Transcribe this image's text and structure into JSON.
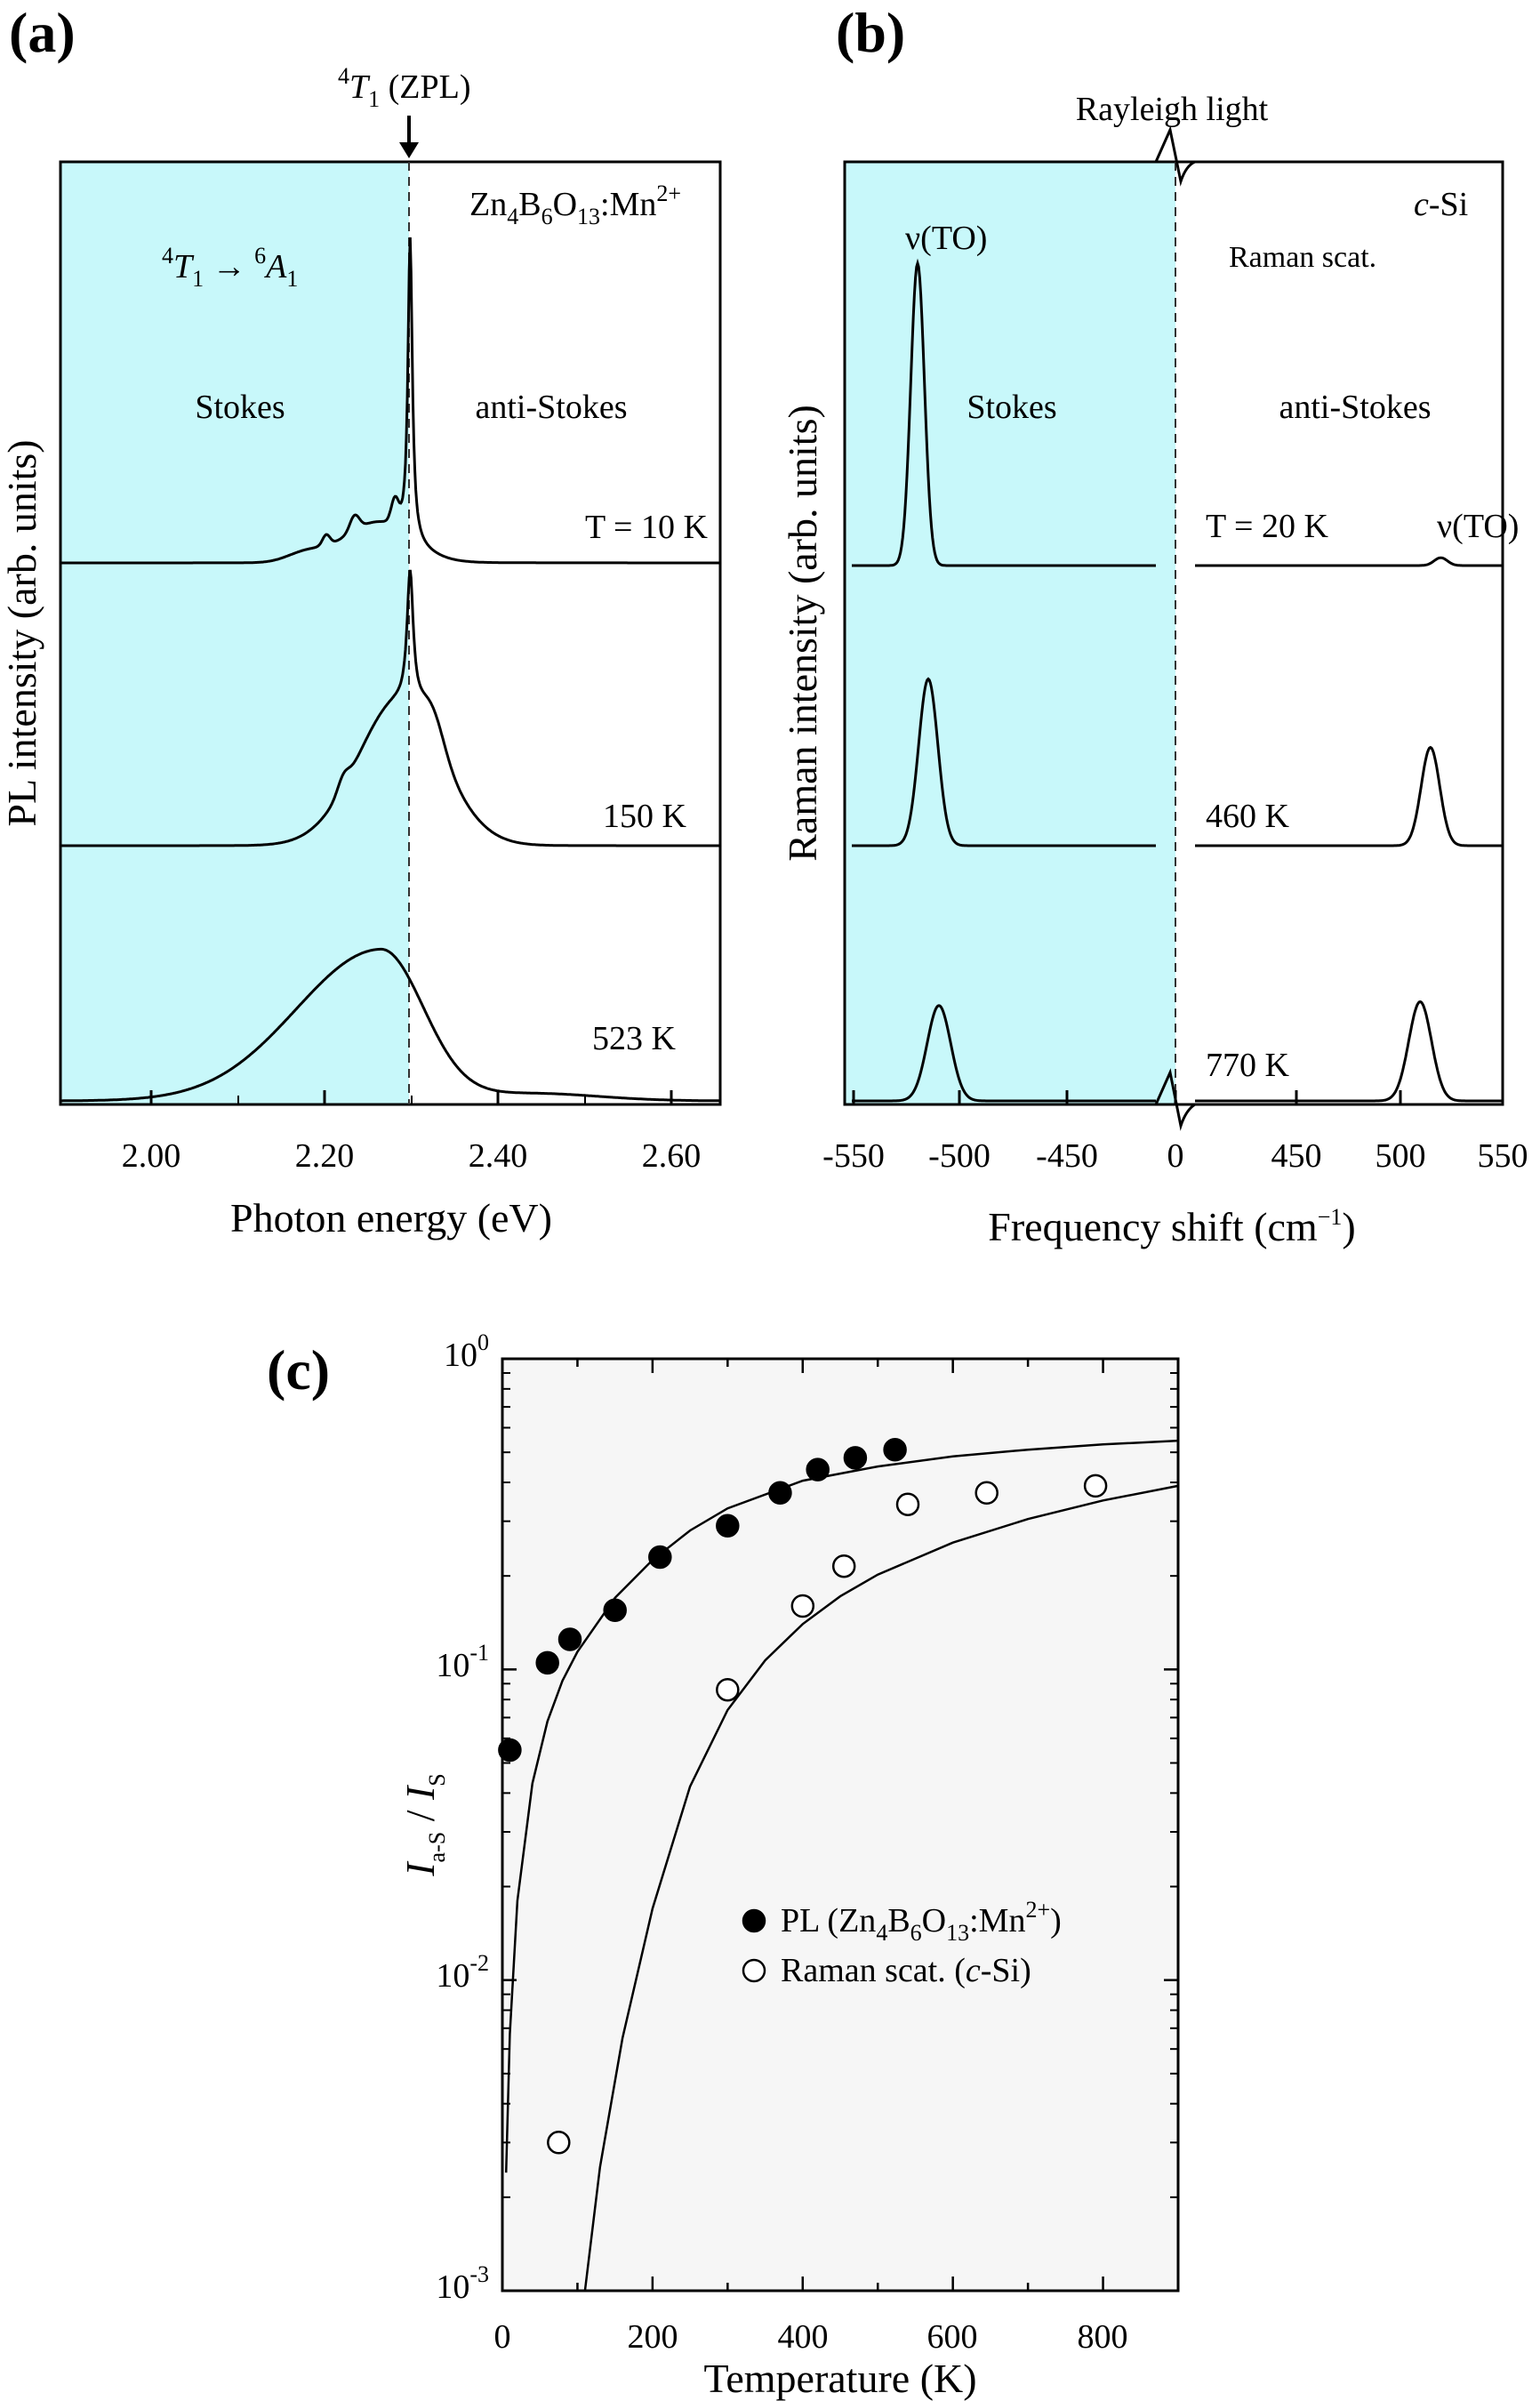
{
  "figure_labels": {
    "a": "(a)",
    "b": "(b)",
    "c": "(c)"
  },
  "panel_a": {
    "xlabel": "Photon energy (eV)",
    "ylabel": "PL intensity (arb. units)",
    "x_ticks": [
      "2.00",
      "2.20",
      "2.40",
      "2.60"
    ],
    "zpl_label": {
      "sup": "4",
      "main": "T",
      "sub": "1",
      "tail": " (ZPL)"
    },
    "material": {
      "base": "Zn",
      "s1": "4",
      "b": "B",
      "s2": "6",
      "o": "O",
      "s3": "13",
      "tail": ":Mn",
      "sup": "2+"
    },
    "transition": {
      "sup1": "4",
      "t": "T",
      "sub1": "1",
      "arrow": " → ",
      "sup2": "6",
      "a": "A",
      "sub2": "1"
    },
    "stokes": "Stokes",
    "anti_stokes": "anti-Stokes",
    "temps": [
      "T = 10 K",
      "150 K",
      "523 K"
    ],
    "shade_color": "#c8f8fa"
  },
  "panel_b": {
    "xlabel": "Frequency shift (cm",
    "xlabel_sup": "−1",
    "xlabel_close": ")",
    "ylabel": "Raman intensity (arb. units)",
    "x_ticks": [
      "-550",
      "-500",
      "-450",
      "0",
      "450",
      "500",
      "550"
    ],
    "rayleigh": "Rayleigh light",
    "material": "c-Si",
    "raman_scat": "Raman scat.",
    "peak_label": "ν(TO)",
    "stokes": "Stokes",
    "anti_stokes": "anti-Stokes",
    "temps": [
      "T = 20 K",
      "460 K",
      "770 K"
    ],
    "peak_label_right": "ν(TO)"
  },
  "chart_data": [
    {
      "panel": "c",
      "type": "scatter",
      "title": "",
      "xlabel": "Temperature (K)",
      "ylabel": "I_a-S / I_S",
      "xlim": [
        0,
        900
      ],
      "ylim": [
        0.001,
        1
      ],
      "y_scale": "log",
      "x_ticks": [
        "0",
        "200",
        "400",
        "600",
        "800"
      ],
      "y_ticks": [
        "10^0",
        "10^-1",
        "10^-2",
        "10^-3"
      ],
      "legend_position": "center-right",
      "background": "#f6f6f6",
      "series": [
        {
          "name": "PL (Zn4B6O13:Mn2+)",
          "marker": "filled-circle",
          "x": [
            10,
            60,
            90,
            150,
            210,
            300,
            370,
            420,
            470,
            523
          ],
          "y": [
            0.055,
            0.105,
            0.125,
            0.155,
            0.23,
            0.29,
            0.37,
            0.44,
            0.48,
            0.51
          ]
        },
        {
          "name": "Raman scat. (c-Si)",
          "marker": "open-circle",
          "x": [
            75,
            300,
            400,
            455,
            540,
            645,
            790
          ],
          "y": [
            0.003,
            0.086,
            0.16,
            0.215,
            0.34,
            0.37,
            0.39
          ]
        }
      ],
      "fit_curves": [
        {
          "series": "PL",
          "description": "fit through PL data",
          "x": [
            5,
            10,
            20,
            40,
            60,
            80,
            100,
            150,
            200,
            250,
            300,
            400,
            500,
            600,
            700,
            800,
            900
          ],
          "y": [
            0.0024,
            0.0067,
            0.018,
            0.043,
            0.068,
            0.092,
            0.114,
            0.17,
            0.225,
            0.28,
            0.33,
            0.405,
            0.45,
            0.485,
            0.51,
            0.53,
            0.545
          ]
        },
        {
          "series": "Raman",
          "description": "fit through Raman data",
          "x": [
            110,
            130,
            160,
            200,
            250,
            300,
            350,
            400,
            450,
            500,
            600,
            700,
            800,
            900
          ],
          "y": [
            0.001,
            0.0025,
            0.0065,
            0.017,
            0.042,
            0.074,
            0.107,
            0.14,
            0.172,
            0.202,
            0.256,
            0.305,
            0.35,
            0.39
          ]
        }
      ],
      "legend": {
        "pl": {
          "text": "PL (Zn",
          "s1": "4",
          "b": "B",
          "s2": "6",
          "o": "O",
          "s3": "13",
          "tail": ":Mn",
          "sup": "2+",
          "close": ")"
        },
        "raman": {
          "text": "Raman scat. (",
          "it": "c",
          "tail": "-Si)"
        }
      },
      "ylabel_parts": {
        "i1": "I",
        "sub1": "a-S",
        "slash": " / ",
        "i2": "I",
        "sub2": "S"
      }
    },
    {
      "panel": "a",
      "type": "line",
      "title": "",
      "xlabel": "Photon energy (eV)",
      "ylabel": "PL intensity (arb. units)",
      "xlim": [
        1.95,
        2.65
      ],
      "zpl_energy": 2.32,
      "series": [
        {
          "name": "T = 10 K",
          "peak_eV": 2.32,
          "peak_height": 1.0
        },
        {
          "name": "150 K",
          "peak_eV": 2.32,
          "peak_height": 0.85
        },
        {
          "name": "523 K",
          "peak_eV": 2.29,
          "peak_height": 0.55
        }
      ]
    },
    {
      "panel": "b",
      "type": "line",
      "title": "",
      "xlabel": "Frequency shift (cm−1)",
      "ylabel": "Raman intensity (arb. units)",
      "series": [
        {
          "name": "T = 20 K",
          "stokes_peak": -520,
          "anti_stokes_peak": 520,
          "stokes_height": 1.0,
          "anti_stokes_height": 0.01
        },
        {
          "name": "460 K",
          "stokes_peak": -515,
          "anti_stokes_peak": 515,
          "stokes_height": 0.75,
          "anti_stokes_height": 0.17
        },
        {
          "name": "770 K",
          "stokes_peak": -510,
          "anti_stokes_peak": 510,
          "stokes_height": 0.55,
          "anti_stokes_height": 0.22
        }
      ]
    }
  ]
}
